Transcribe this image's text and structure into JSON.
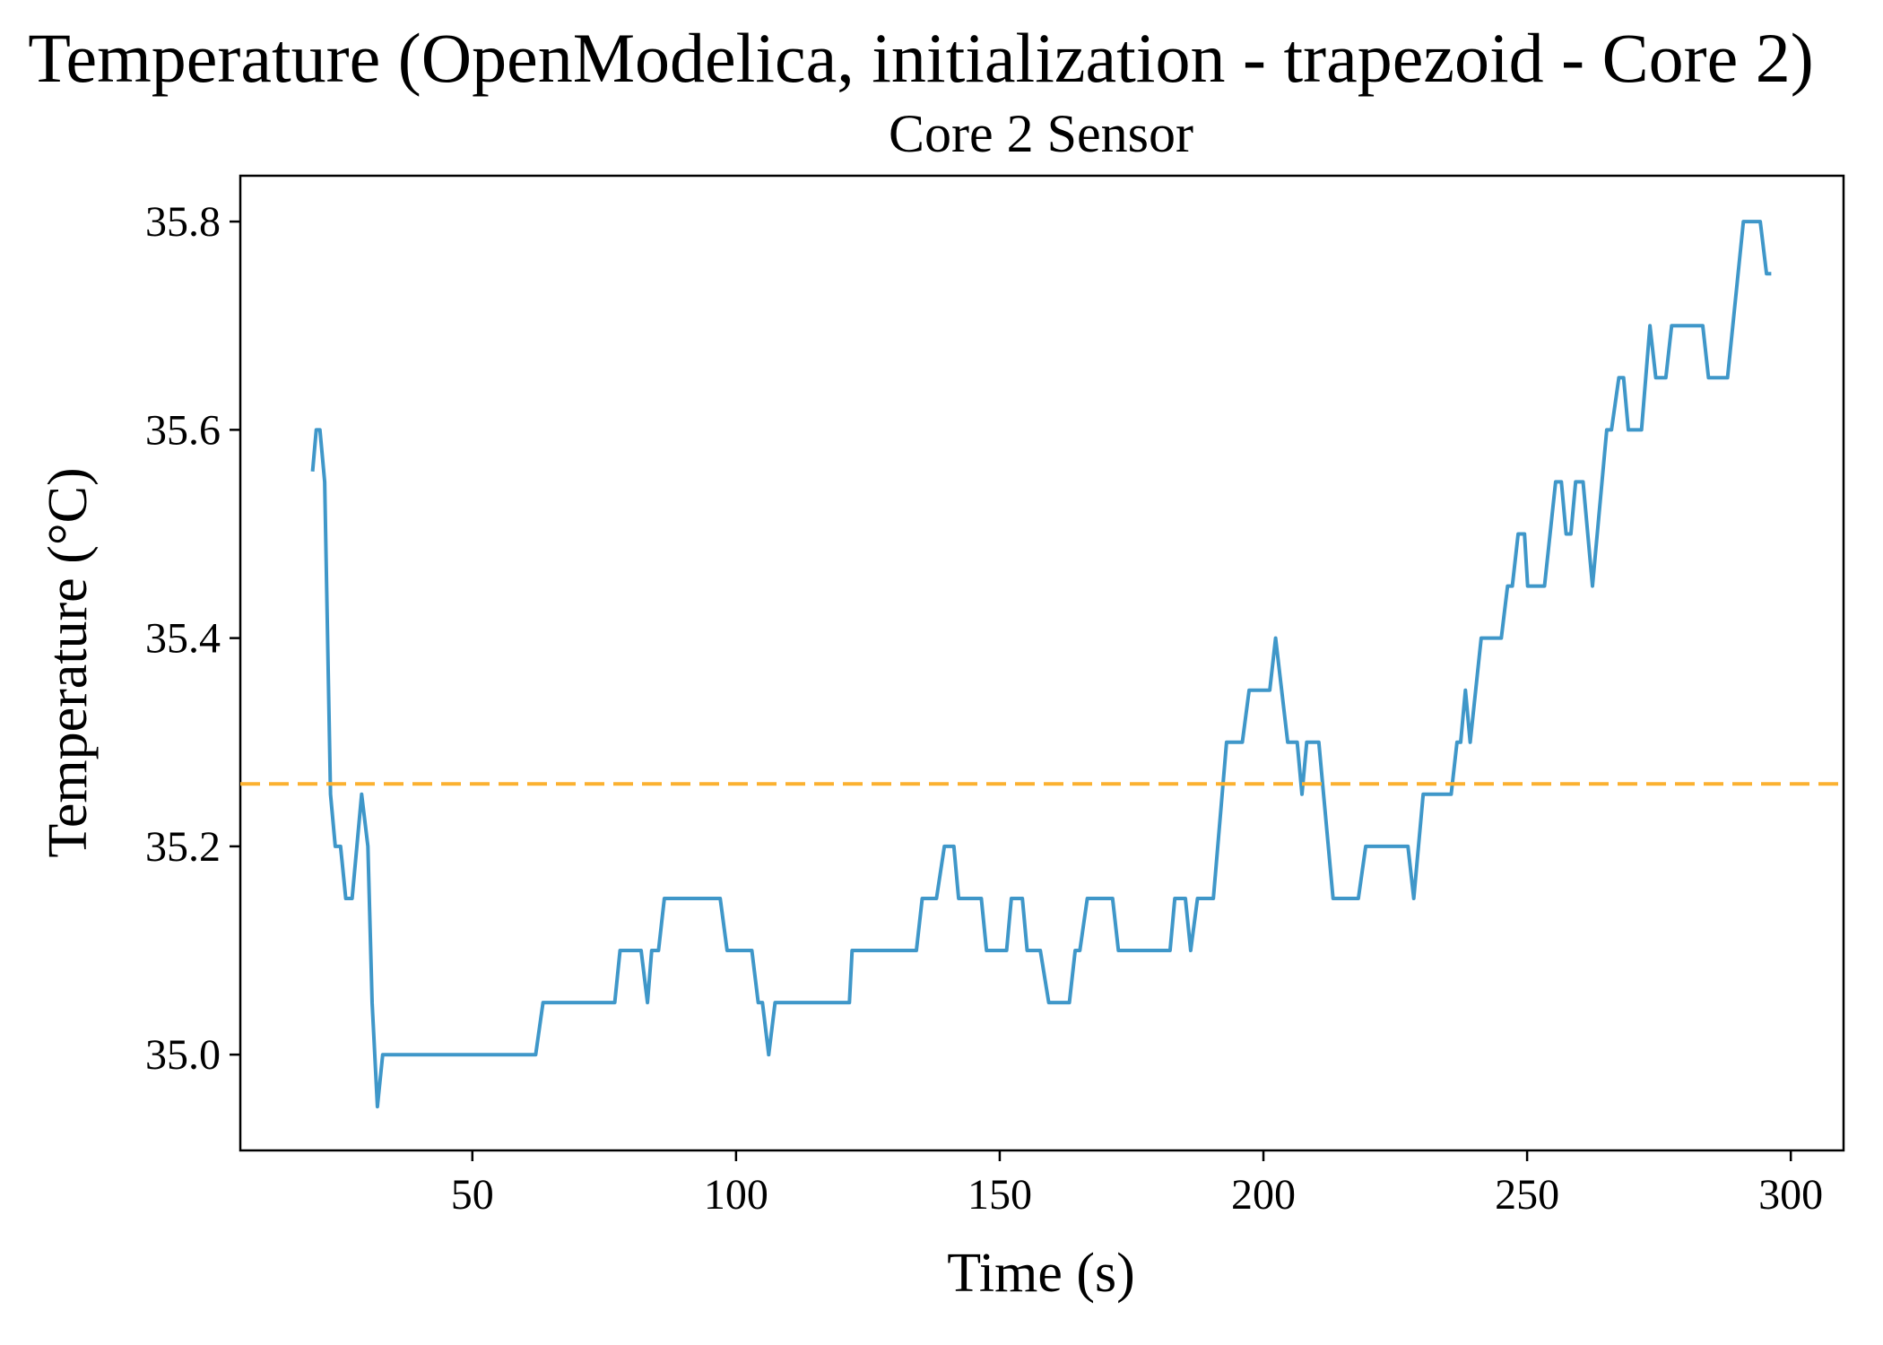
{
  "chart_data": {
    "type": "line",
    "title": "Temperature (OpenModelica, initialization - trapezoid - Core 2)",
    "subtitle": "Core 2 Sensor",
    "x_label": "Time (s)",
    "y_label": "Temperature (°C)",
    "color": "#3f97c9",
    "x": [
      19.7,
      20.4,
      21.1,
      22,
      23.1,
      24,
      25,
      26,
      27.2,
      29,
      30.2,
      31,
      32,
      33,
      62,
      63.4,
      77,
      78,
      82,
      83.2,
      84,
      85.3,
      86.4,
      97,
      98.3,
      103,
      104.2,
      105,
      106.2,
      107.4,
      121.5,
      122,
      134.2,
      135.3,
      138,
      139.5,
      141.3,
      142.2,
      146.5,
      147.5,
      151.3,
      152.2,
      154.3,
      155.2,
      157.7,
      159.3,
      163.2,
      164.3,
      165.2,
      166.6,
      171.4,
      172.5,
      182.3,
      183.2,
      185.2,
      186.2,
      187.5,
      190.5,
      193,
      196,
      197.3,
      201.2,
      202.3,
      204.6,
      206.4,
      207.3,
      208.2,
      210.5,
      213.2,
      218,
      219.4,
      227.4,
      228.5,
      230.3,
      235.6,
      236.7,
      237.4,
      238.3,
      239.2,
      241.3,
      245.1,
      246.3,
      247.2,
      248.3,
      249.5,
      250.1,
      253.3,
      255.4,
      256.5,
      257.4,
      258.3,
      259.2,
      260.6,
      262.4,
      265.1,
      266,
      267.4,
      268.3,
      269.2,
      271.7,
      273.3,
      274.4,
      276.3,
      277.4,
      283.3,
      284.4,
      288,
      291,
      294.2,
      295.4,
      296.3
    ],
    "values": [
      35.56,
      35.6,
      35.6,
      35.55,
      35.25,
      35.2,
      35.2,
      35.15,
      35.15,
      35.25,
      35.2,
      35.05,
      34.95,
      35.0,
      35.0,
      35.05,
      35.05,
      35.1,
      35.1,
      35.05,
      35.1,
      35.1,
      35.15,
      35.15,
      35.1,
      35.1,
      35.05,
      35.05,
      35.0,
      35.05,
      35.05,
      35.1,
      35.1,
      35.15,
      35.15,
      35.2,
      35.2,
      35.15,
      35.15,
      35.1,
      35.1,
      35.15,
      35.15,
      35.1,
      35.1,
      35.05,
      35.05,
      35.1,
      35.1,
      35.15,
      35.15,
      35.1,
      35.1,
      35.15,
      35.15,
      35.1,
      35.15,
      35.15,
      35.3,
      35.3,
      35.35,
      35.35,
      35.4,
      35.3,
      35.3,
      35.25,
      35.3,
      35.3,
      35.15,
      35.15,
      35.2,
      35.2,
      35.15,
      35.25,
      35.25,
      35.3,
      35.3,
      35.35,
      35.3,
      35.4,
      35.4,
      35.45,
      35.45,
      35.5,
      35.5,
      35.45,
      35.45,
      35.55,
      35.55,
      35.5,
      35.5,
      35.55,
      35.55,
      35.45,
      35.6,
      35.6,
      35.65,
      35.65,
      35.6,
      35.6,
      35.7,
      35.65,
      35.65,
      35.7,
      35.7,
      35.65,
      35.65,
      35.8,
      35.8,
      35.75,
      35.75
    ],
    "reference_line": {
      "value": 35.26,
      "color": "#fbb130",
      "style": "dashed"
    },
    "xlim": [
      6,
      310
    ],
    "ylim": [
      34.908,
      35.844
    ],
    "xticks": [
      50,
      100,
      150,
      200,
      250,
      300
    ],
    "yticks": [
      {
        "value": 35,
        "label": "35.0"
      },
      35.2,
      35.4,
      35.6,
      35.8
    ],
    "grid": false
  }
}
